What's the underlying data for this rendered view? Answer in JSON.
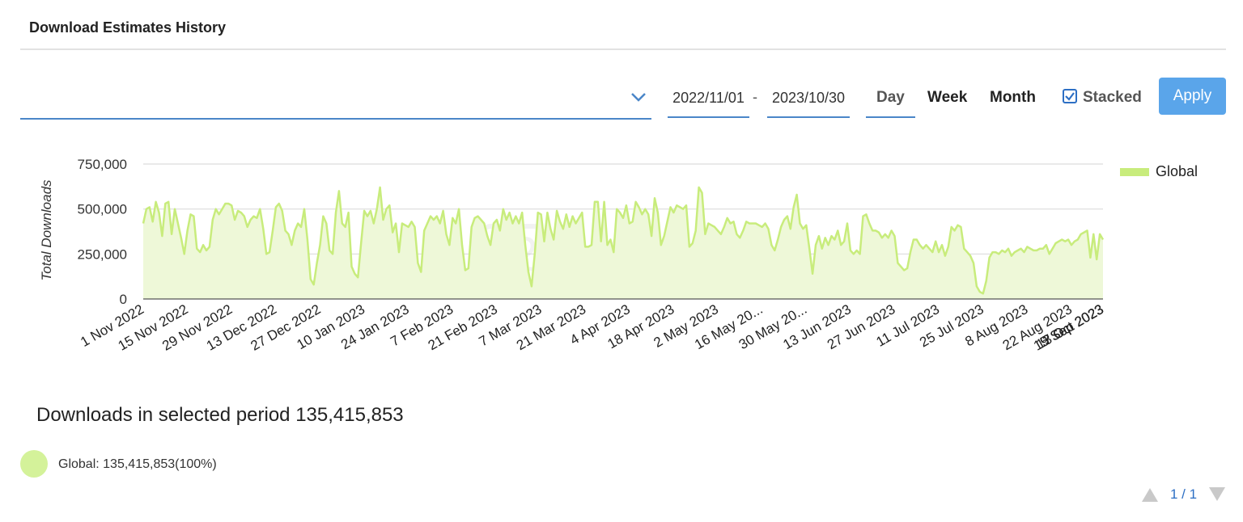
{
  "header": {
    "title": "Download Estimates History"
  },
  "controls": {
    "date_start": "2022/11/01",
    "date_sep": "-",
    "date_end": "2023/10/30",
    "periods": [
      "Day",
      "Week",
      "Month"
    ],
    "stacked_label": "Stacked",
    "stacked_checked": true,
    "apply_label": "Apply",
    "accent_color": "#4a86c8",
    "apply_color": "#5aa5ea"
  },
  "chart_data": {
    "type": "area",
    "ylabel": "Total Downloads",
    "ylim": [
      0,
      750000
    ],
    "yticks": [
      0,
      250000,
      500000,
      750000
    ],
    "ytick_labels": [
      "0",
      "250,000",
      "500,000",
      "750,000"
    ],
    "xtick_labels": [
      "1 Nov 2022",
      "15 Nov 2022",
      "29 Nov 2022",
      "13 Dec 2022",
      "27 Dec 2022",
      "10 Jan 2023",
      "24 Jan 2023",
      "7 Feb 2023",
      "21 Feb 2023",
      "7 Mar 2023",
      "21 Mar 2023",
      "4 Apr 2023",
      "18 Apr 2023",
      "2 May 2023",
      "16 May 20...",
      "30 May 20...",
      "13 Jun 2023",
      "27 Jun 2023",
      "11 Jul 2023",
      "25 Jul 2023",
      "8 Aug 2023",
      "22 Aug 2023",
      "5 Sep 2023",
      "19 Sep 2023",
      "3 Oct 2023",
      "17 Oct 2023"
    ],
    "grid": true,
    "legend": "right",
    "series_color": "#c8ec7c",
    "series_fill": "#eef8d8",
    "series": [
      {
        "name": "Global",
        "values": [
          420000,
          500000,
          510000,
          430000,
          540000,
          480000,
          350000,
          530000,
          540000,
          360000,
          500000,
          420000,
          340000,
          250000,
          380000,
          470000,
          460000,
          280000,
          260000,
          300000,
          270000,
          290000,
          440000,
          500000,
          470000,
          500000,
          530000,
          530000,
          520000,
          440000,
          490000,
          480000,
          460000,
          400000,
          440000,
          460000,
          450000,
          500000,
          390000,
          250000,
          260000,
          380000,
          510000,
          530000,
          490000,
          380000,
          360000,
          300000,
          380000,
          420000,
          400000,
          500000,
          330000,
          110000,
          80000,
          200000,
          300000,
          460000,
          420000,
          270000,
          250000,
          480000,
          600000,
          420000,
          400000,
          480000,
          180000,
          140000,
          120000,
          310000,
          490000,
          460000,
          490000,
          420000,
          500000,
          620000,
          440000,
          500000,
          520000,
          370000,
          420000,
          260000,
          420000,
          410000,
          400000,
          430000,
          400000,
          200000,
          150000,
          380000,
          420000,
          460000,
          440000,
          460000,
          420000,
          490000,
          360000,
          300000,
          450000,
          420000,
          500000,
          300000,
          160000,
          170000,
          400000,
          450000,
          460000,
          440000,
          420000,
          350000,
          300000,
          420000,
          440000,
          380000,
          500000,
          440000,
          480000,
          420000,
          460000,
          420000,
          480000,
          300000,
          150000,
          70000,
          250000,
          480000,
          470000,
          320000,
          480000,
          390000,
          330000,
          490000,
          430000,
          390000,
          470000,
          400000,
          460000,
          420000,
          450000,
          480000,
          290000,
          290000,
          300000,
          540000,
          540000,
          320000,
          540000,
          300000,
          330000,
          260000,
          500000,
          480000,
          450000,
          520000,
          420000,
          430000,
          540000,
          510000,
          470000,
          500000,
          470000,
          350000,
          560000,
          480000,
          300000,
          350000,
          430000,
          510000,
          480000,
          520000,
          510000,
          500000,
          520000,
          290000,
          310000,
          380000,
          620000,
          590000,
          360000,
          420000,
          410000,
          400000,
          380000,
          360000,
          400000,
          450000,
          420000,
          430000,
          360000,
          340000,
          380000,
          430000,
          420000,
          420000,
          420000,
          410000,
          400000,
          420000,
          390000,
          300000,
          270000,
          330000,
          400000,
          440000,
          460000,
          390000,
          510000,
          580000,
          420000,
          390000,
          410000,
          280000,
          140000,
          300000,
          350000,
          280000,
          340000,
          300000,
          350000,
          330000,
          380000,
          300000,
          320000,
          420000,
          270000,
          250000,
          270000,
          250000,
          460000,
          470000,
          420000,
          380000,
          380000,
          370000,
          340000,
          360000,
          340000,
          380000,
          350000,
          200000,
          180000,
          160000,
          170000,
          260000,
          330000,
          330000,
          300000,
          280000,
          300000,
          280000,
          260000,
          320000,
          260000,
          300000,
          240000,
          290000,
          400000,
          380000,
          410000,
          400000,
          280000,
          260000,
          240000,
          200000,
          70000,
          40000,
          30000,
          100000,
          230000,
          260000,
          260000,
          250000,
          270000,
          260000,
          280000,
          240000,
          260000,
          270000,
          280000,
          260000,
          290000,
          280000,
          270000,
          270000,
          280000,
          280000,
          300000,
          250000,
          280000,
          310000,
          320000,
          330000,
          320000,
          330000,
          300000,
          320000,
          330000,
          360000,
          370000,
          380000,
          230000,
          360000,
          220000,
          360000,
          330000
        ]
      }
    ]
  },
  "summary": {
    "total_text": "Downloads in selected period 135,415,853",
    "legend_name": "Global:",
    "legend_value": "135,415,853(100%)",
    "dot_color": "#d4f29a"
  },
  "pagination": {
    "label": "1 / 1"
  }
}
